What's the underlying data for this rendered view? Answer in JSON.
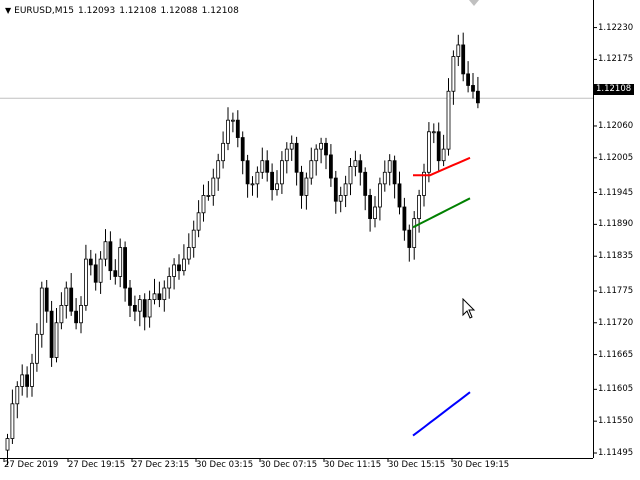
{
  "chart_header": {
    "symbol_timeframe": "EURUSD,M15",
    "open": "1.12093",
    "high": "1.12108",
    "low": "1.12088",
    "close": "1.12108"
  },
  "price_axis": {
    "labels": [
      "1.12230",
      "1.12175",
      "1.12120",
      "1.12060",
      "1.12005",
      "1.11945",
      "1.11890",
      "1.11835",
      "1.11775",
      "1.11720",
      "1.11665",
      "1.11605",
      "1.11550",
      "1.11495"
    ],
    "current_price": "1.12108"
  },
  "time_axis": {
    "labels": [
      "27 Dec 2019",
      "27 Dec 19:15",
      "27 Dec 23:15",
      "30 Dec 03:15",
      "30 Dec 07:15",
      "30 Dec 11:15",
      "30 Dec 15:15",
      "30 Dec 19:15"
    ]
  },
  "colors": {
    "background": "#ffffff",
    "candle": "#000000",
    "bid_line": "#c0c0c0",
    "ma_red": "#ff0000",
    "ma_green": "#008000",
    "ma_blue": "#0000ff"
  },
  "icons": {
    "header_arrow": "triangle-down-icon",
    "cursor": "mouse-pointer-icon",
    "scroll_marker": "shift-marker-icon"
  },
  "chart_data": {
    "type": "candlestick",
    "symbol": "EURUSD",
    "timeframe": "M15",
    "ylim": [
      1.11495,
      1.1225
    ],
    "grid": false,
    "ohlc_close": [
      1.1152,
      1.1158,
      1.1161,
      1.1163,
      1.1161,
      1.1165,
      1.117,
      1.1178,
      1.1174,
      1.1166,
      1.1172,
      1.1175,
      1.1178,
      1.1174,
      1.1172,
      1.1175,
      1.1183,
      1.1182,
      1.1179,
      1.1183,
      1.1186,
      1.1181,
      1.118,
      1.1185,
      1.1178,
      1.1175,
      1.1174,
      1.1176,
      1.1173,
      1.1176,
      1.1177,
      1.1176,
      1.1178,
      1.118,
      1.1182,
      1.1181,
      1.1183,
      1.1185,
      1.1188,
      1.1191,
      1.1194,
      1.1194,
      1.1197,
      1.12,
      1.1203,
      1.1207,
      1.1207,
      1.1204,
      1.12,
      1.1196,
      1.1196,
      1.1198,
      1.12,
      1.1198,
      1.1195,
      1.1196,
      1.12,
      1.1202,
      1.1203,
      1.1198,
      1.1194,
      1.1197,
      1.12,
      1.1202,
      1.1203,
      1.1201,
      1.1197,
      1.1193,
      1.1194,
      1.1196,
      1.1199,
      1.12,
      1.1198,
      1.1194,
      1.119,
      1.1192,
      1.1196,
      1.1198,
      1.12,
      1.1196,
      1.1192,
      1.1188,
      1.1185,
      1.119,
      1.1194,
      1.1198,
      1.1205,
      1.1205,
      1.12,
      1.1202,
      1.1212,
      1.1218,
      1.122,
      1.1215,
      1.1213,
      1.1212,
      1.121
    ],
    "moving_averages": [
      {
        "color": "#ff0000",
        "from": 1.11975,
        "to": 1.12005
      },
      {
        "color": "#008000",
        "from": 1.11885,
        "to": 1.11935
      },
      {
        "color": "#0000ff",
        "from": 1.11525,
        "to": 1.116
      }
    ],
    "current_bid": 1.12108
  }
}
